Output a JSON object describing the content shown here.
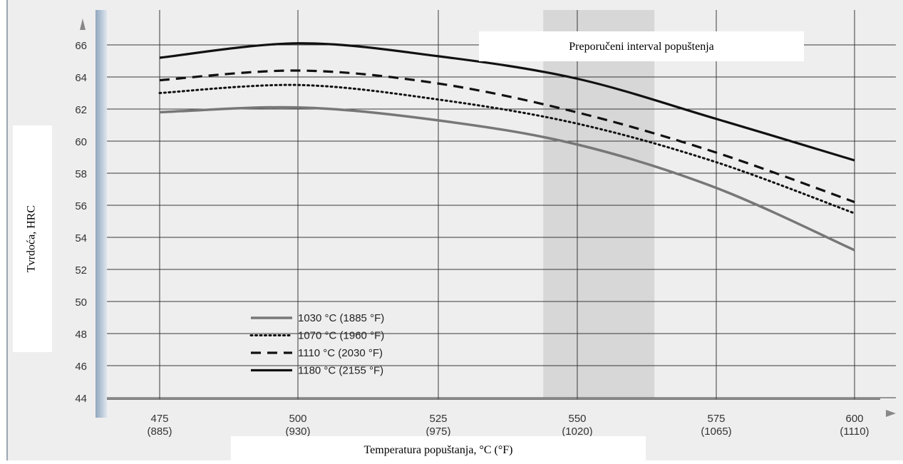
{
  "chart_data": {
    "type": "line",
    "title": "",
    "xlabel": "Temperatura popuštanja, °C (°F)",
    "ylabel": "Tvrdoća, HRC",
    "annotation": "Preporučeni interval popuštenja",
    "x_ticks": [
      {
        "c": "475",
        "f": "(885)"
      },
      {
        "c": "500",
        "f": "(930)"
      },
      {
        "c": "525",
        "f": "(975)"
      },
      {
        "c": "550",
        "f": "(1020)"
      },
      {
        "c": "575",
        "f": "(1065)"
      },
      {
        "c": "600",
        "f": "(1110)"
      }
    ],
    "y_ticks": [
      "44",
      "46",
      "48",
      "50",
      "52",
      "54",
      "56",
      "58",
      "60",
      "62",
      "64",
      "66"
    ],
    "xlim": [
      475,
      600
    ],
    "ylim": [
      44,
      67
    ],
    "grid": true,
    "legend_position": "bottom-left",
    "recommended_interval": [
      544,
      564
    ],
    "x": [
      475,
      500,
      525,
      550,
      575,
      600
    ],
    "series": [
      {
        "name": "1030 °C (1885 °F)",
        "style": "solid-gray",
        "color": "#777777",
        "values": [
          61.8,
          62.1,
          61.3,
          59.8,
          57.1,
          53.2
        ]
      },
      {
        "name": "1070 °C (1960 °F)",
        "style": "dotted",
        "color": "#111111",
        "values": [
          63.0,
          63.5,
          62.6,
          61.1,
          58.7,
          55.5
        ]
      },
      {
        "name": "1110 °C (2030 °F)",
        "style": "dashed",
        "color": "#111111",
        "values": [
          63.8,
          64.4,
          63.6,
          61.8,
          59.3,
          56.2
        ]
      },
      {
        "name": "1180 °C (2155 °F)",
        "style": "solid-black",
        "color": "#111111",
        "values": [
          65.2,
          66.1,
          65.3,
          63.9,
          61.4,
          58.8
        ]
      }
    ]
  }
}
